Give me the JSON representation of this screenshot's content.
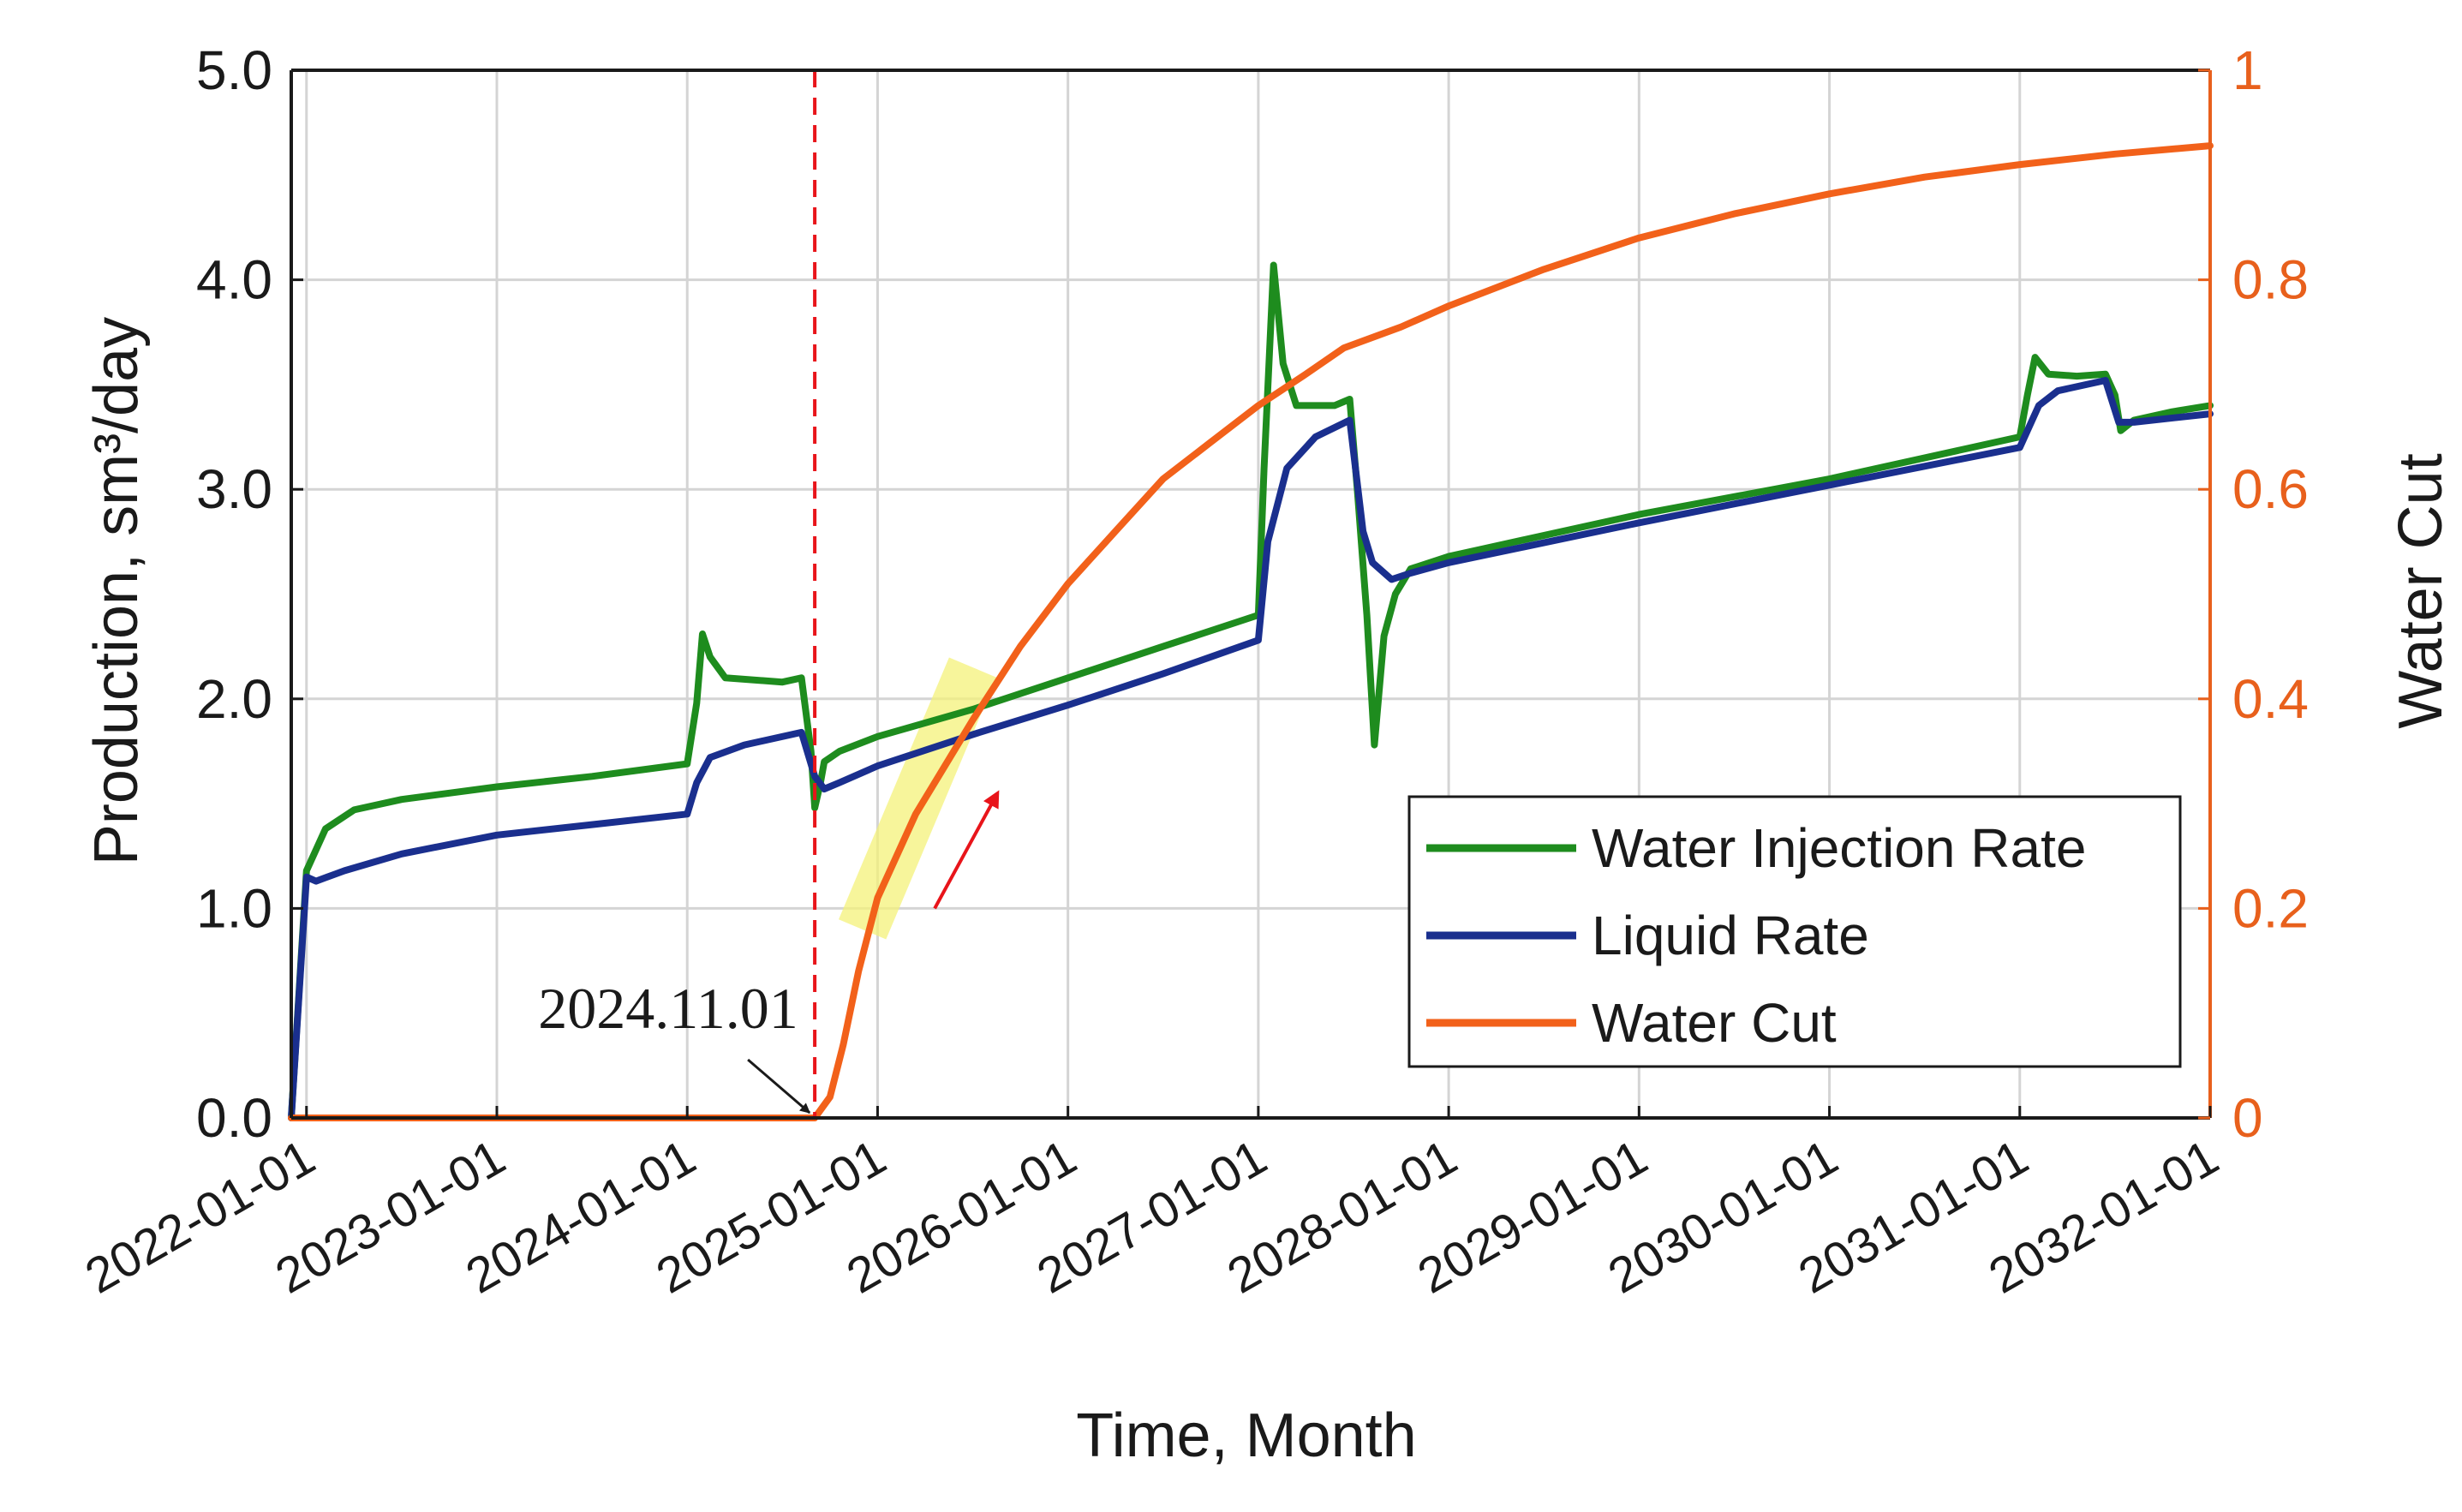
{
  "chart_data": {
    "type": "line",
    "title": "",
    "xlabel": "Time, Month",
    "ylabel_left": "Production, sm³/day",
    "ylabel_right": "Water Cut",
    "x_range": [
      2021.92,
      2032.0
    ],
    "ylim_left": [
      0,
      5
    ],
    "ylim_right": [
      0,
      1
    ],
    "grid": true,
    "x_ticks": [
      {
        "value": 2022.0,
        "label": "2022-01-01"
      },
      {
        "value": 2023.0,
        "label": "2023-01-01"
      },
      {
        "value": 2024.0,
        "label": "2024-01-01"
      },
      {
        "value": 2025.0,
        "label": "2025-01-01"
      },
      {
        "value": 2026.0,
        "label": "2026-01-01"
      },
      {
        "value": 2027.0,
        "label": "2027-01-01"
      },
      {
        "value": 2028.0,
        "label": "2028-01-01"
      },
      {
        "value": 2029.0,
        "label": "2029-01-01"
      },
      {
        "value": 2030.0,
        "label": "2030-01-01"
      },
      {
        "value": 2031.0,
        "label": "2031-01-01"
      },
      {
        "value": 2032.0,
        "label": "2032-01-01"
      }
    ],
    "y_ticks_left": [
      {
        "value": 0,
        "label": "0.0"
      },
      {
        "value": 1,
        "label": "1.0"
      },
      {
        "value": 2,
        "label": "2.0"
      },
      {
        "value": 3,
        "label": "3.0"
      },
      {
        "value": 4,
        "label": "4.0"
      },
      {
        "value": 5,
        "label": "5.0"
      }
    ],
    "y_ticks_right": [
      {
        "value": 0,
        "label": "0"
      },
      {
        "value": 0.2,
        "label": "0.2"
      },
      {
        "value": 0.4,
        "label": "0.4"
      },
      {
        "value": 0.6,
        "label": "0.6"
      },
      {
        "value": 0.8,
        "label": "0.8"
      },
      {
        "value": 1,
        "label": "1"
      }
    ],
    "legend_position": "lower-right",
    "series": [
      {
        "name": "Water Injection Rate",
        "axis": "left",
        "color": "#1E8C1E",
        "points": [
          [
            2021.92,
            0.0
          ],
          [
            2022.0,
            1.18
          ],
          [
            2022.1,
            1.38
          ],
          [
            2022.25,
            1.47
          ],
          [
            2022.5,
            1.52
          ],
          [
            2023.0,
            1.58
          ],
          [
            2023.5,
            1.63
          ],
          [
            2024.0,
            1.69
          ],
          [
            2024.05,
            1.98
          ],
          [
            2024.08,
            2.31
          ],
          [
            2024.12,
            2.2
          ],
          [
            2024.2,
            2.1
          ],
          [
            2024.5,
            2.08
          ],
          [
            2024.6,
            2.1
          ],
          [
            2024.65,
            1.75
          ],
          [
            2024.67,
            1.48
          ],
          [
            2024.7,
            1.6
          ],
          [
            2024.72,
            1.7
          ],
          [
            2024.8,
            1.75
          ],
          [
            2025.0,
            1.82
          ],
          [
            2025.5,
            1.95
          ],
          [
            2026.0,
            2.1
          ],
          [
            2026.5,
            2.25
          ],
          [
            2027.0,
            2.4
          ],
          [
            2027.03,
            3.1
          ],
          [
            2027.08,
            4.07
          ],
          [
            2027.13,
            3.6
          ],
          [
            2027.2,
            3.4
          ],
          [
            2027.4,
            3.4
          ],
          [
            2027.48,
            3.43
          ],
          [
            2027.52,
            3.0
          ],
          [
            2027.57,
            2.4
          ],
          [
            2027.61,
            1.78
          ],
          [
            2027.66,
            2.3
          ],
          [
            2027.72,
            2.5
          ],
          [
            2027.8,
            2.62
          ],
          [
            2028.0,
            2.68
          ],
          [
            2029.0,
            2.88
          ],
          [
            2030.0,
            3.05
          ],
          [
            2031.0,
            3.25
          ],
          [
            2031.04,
            3.45
          ],
          [
            2031.08,
            3.63
          ],
          [
            2031.15,
            3.55
          ],
          [
            2031.3,
            3.54
          ],
          [
            2031.45,
            3.55
          ],
          [
            2031.5,
            3.45
          ],
          [
            2031.53,
            3.28
          ],
          [
            2031.6,
            3.33
          ],
          [
            2031.8,
            3.37
          ],
          [
            2032.0,
            3.4
          ]
        ]
      },
      {
        "name": "Liquid Rate",
        "axis": "left",
        "color": "#1A2F8E",
        "points": [
          [
            2021.92,
            0.0
          ],
          [
            2022.0,
            1.15
          ],
          [
            2022.05,
            1.13
          ],
          [
            2022.2,
            1.18
          ],
          [
            2022.5,
            1.26
          ],
          [
            2023.0,
            1.35
          ],
          [
            2023.5,
            1.4
          ],
          [
            2024.0,
            1.45
          ],
          [
            2024.05,
            1.6
          ],
          [
            2024.12,
            1.72
          ],
          [
            2024.3,
            1.78
          ],
          [
            2024.6,
            1.84
          ],
          [
            2024.67,
            1.63
          ],
          [
            2024.72,
            1.57
          ],
          [
            2024.8,
            1.6
          ],
          [
            2025.0,
            1.68
          ],
          [
            2025.5,
            1.83
          ],
          [
            2026.0,
            1.97
          ],
          [
            2026.5,
            2.12
          ],
          [
            2027.0,
            2.28
          ],
          [
            2027.05,
            2.75
          ],
          [
            2027.15,
            3.1
          ],
          [
            2027.3,
            3.25
          ],
          [
            2027.48,
            3.33
          ],
          [
            2027.55,
            2.8
          ],
          [
            2027.6,
            2.65
          ],
          [
            2027.7,
            2.57
          ],
          [
            2027.8,
            2.6
          ],
          [
            2028.0,
            2.65
          ],
          [
            2029.0,
            2.84
          ],
          [
            2030.0,
            3.02
          ],
          [
            2031.0,
            3.2
          ],
          [
            2031.1,
            3.4
          ],
          [
            2031.2,
            3.47
          ],
          [
            2031.45,
            3.52
          ],
          [
            2031.52,
            3.32
          ],
          [
            2031.6,
            3.32
          ],
          [
            2032.0,
            3.36
          ]
        ]
      },
      {
        "name": "Water Cut",
        "axis": "right",
        "color": "#F2611A",
        "points": [
          [
            2021.92,
            0.0
          ],
          [
            2024.67,
            0.0
          ],
          [
            2024.75,
            0.02
          ],
          [
            2024.82,
            0.07
          ],
          [
            2024.9,
            0.14
          ],
          [
            2025.0,
            0.21
          ],
          [
            2025.2,
            0.29
          ],
          [
            2025.5,
            0.38
          ],
          [
            2025.75,
            0.45
          ],
          [
            2026.0,
            0.51
          ],
          [
            2026.25,
            0.56
          ],
          [
            2026.5,
            0.61
          ],
          [
            2026.75,
            0.645
          ],
          [
            2027.0,
            0.68
          ],
          [
            2027.25,
            0.71
          ],
          [
            2027.45,
            0.735
          ],
          [
            2027.75,
            0.755
          ],
          [
            2028.0,
            0.775
          ],
          [
            2028.5,
            0.81
          ],
          [
            2029.0,
            0.84
          ],
          [
            2029.5,
            0.863
          ],
          [
            2030.0,
            0.882
          ],
          [
            2030.5,
            0.898
          ],
          [
            2031.0,
            0.91
          ],
          [
            2031.5,
            0.92
          ],
          [
            2032.0,
            0.928
          ]
        ]
      }
    ],
    "markers": {
      "vertical_line_x": 2024.67,
      "vertical_line_color": "#E8141A",
      "annotation_text": "2024.11.01",
      "annotation_point": [
        2024.67,
        0.0
      ],
      "highlight_band": [
        [
          2024.92,
          0.18
        ],
        [
          2025.5,
          0.43
        ]
      ],
      "highlight_color": "#F4F27A",
      "trend_arrow": [
        [
          2025.3,
          0.2
        ],
        [
          2025.63,
          0.31
        ]
      ],
      "trend_arrow_color": "#E8141A"
    }
  }
}
